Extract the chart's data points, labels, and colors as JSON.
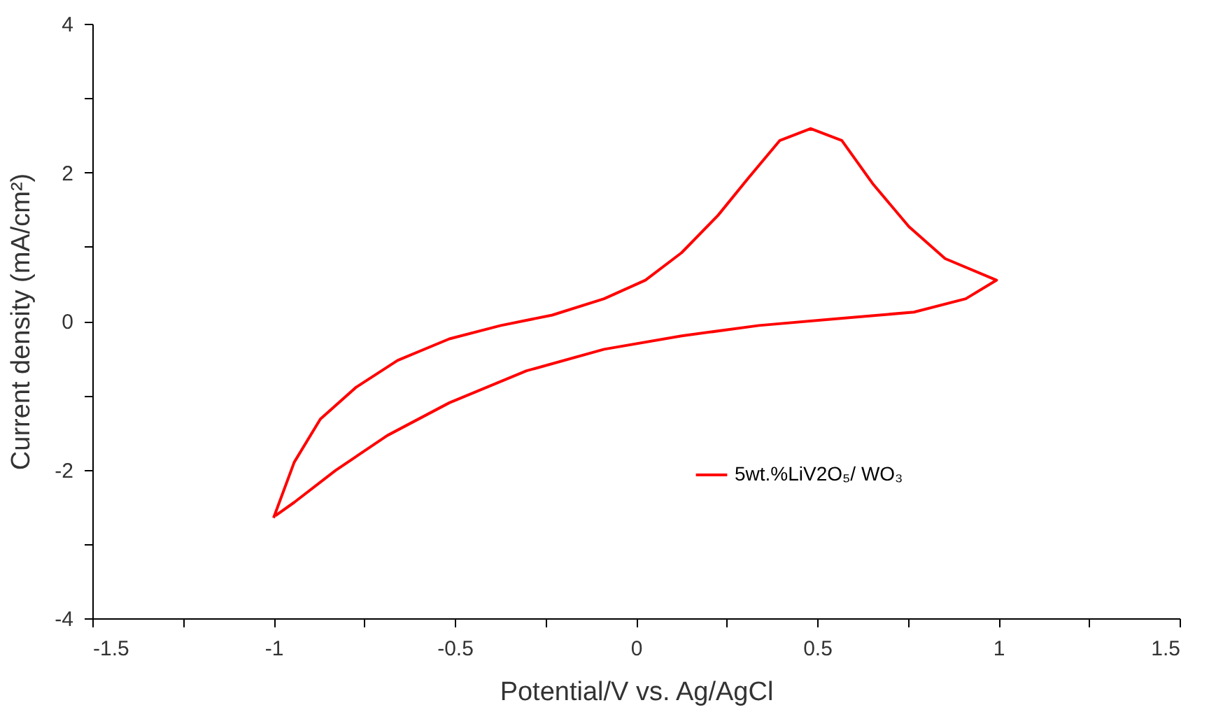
{
  "chart_data": {
    "type": "line",
    "xlabel": "Potential/V vs. Ag/AgCl",
    "ylabel": "Current density (mA/cm²)",
    "series": [
      {
        "name": "5wt.%LiV2O₅/ WO₃",
        "color": "#ff0000",
        "x": [
          -1.0,
          -0.943,
          -0.871,
          -0.772,
          -0.658,
          -0.515,
          -0.373,
          -0.231,
          -0.088,
          0.026,
          0.126,
          0.226,
          0.311,
          0.397,
          0.482,
          0.568,
          0.653,
          0.753,
          0.853,
          0.995,
          0.91,
          0.767,
          0.553,
          0.339,
          0.126,
          -0.088,
          -0.302,
          -0.515,
          -0.686,
          -0.829,
          -0.943,
          -0.995
        ],
        "values": [
          -2.65,
          -1.9,
          -1.32,
          -0.89,
          -0.53,
          -0.24,
          -0.06,
          0.08,
          0.3,
          0.55,
          0.92,
          1.42,
          1.93,
          2.43,
          2.59,
          2.43,
          1.85,
          1.27,
          0.84,
          0.55,
          0.3,
          0.12,
          0.03,
          -0.06,
          -0.2,
          -0.38,
          -0.67,
          -1.1,
          -1.54,
          -2.01,
          -2.44,
          -2.62
        ]
      }
    ],
    "xlim": [
      -1.5,
      1.5
    ],
    "xticks": [
      -1.5,
      {
        "value": -1.25,
        "label": null
      },
      -1,
      {
        "value": -0.75,
        "label": null
      },
      -0.5,
      {
        "value": -0.25,
        "label": null
      },
      0,
      {
        "value": 0.25,
        "label": null
      },
      0.5,
      {
        "value": 0.75,
        "label": null
      },
      1,
      {
        "value": 1.25,
        "label": null
      },
      1.5
    ],
    "ylim": [
      -4,
      4
    ],
    "yticks": [
      -4,
      {
        "value": -3,
        "label": null
      },
      -2,
      {
        "value": -1,
        "label": null
      },
      0,
      {
        "value": 1,
        "label": null
      },
      2,
      {
        "value": 3,
        "label": null
      },
      4
    ],
    "grid": false,
    "legend": "bottom right",
    "marker": "none",
    "line_style": "solid"
  }
}
